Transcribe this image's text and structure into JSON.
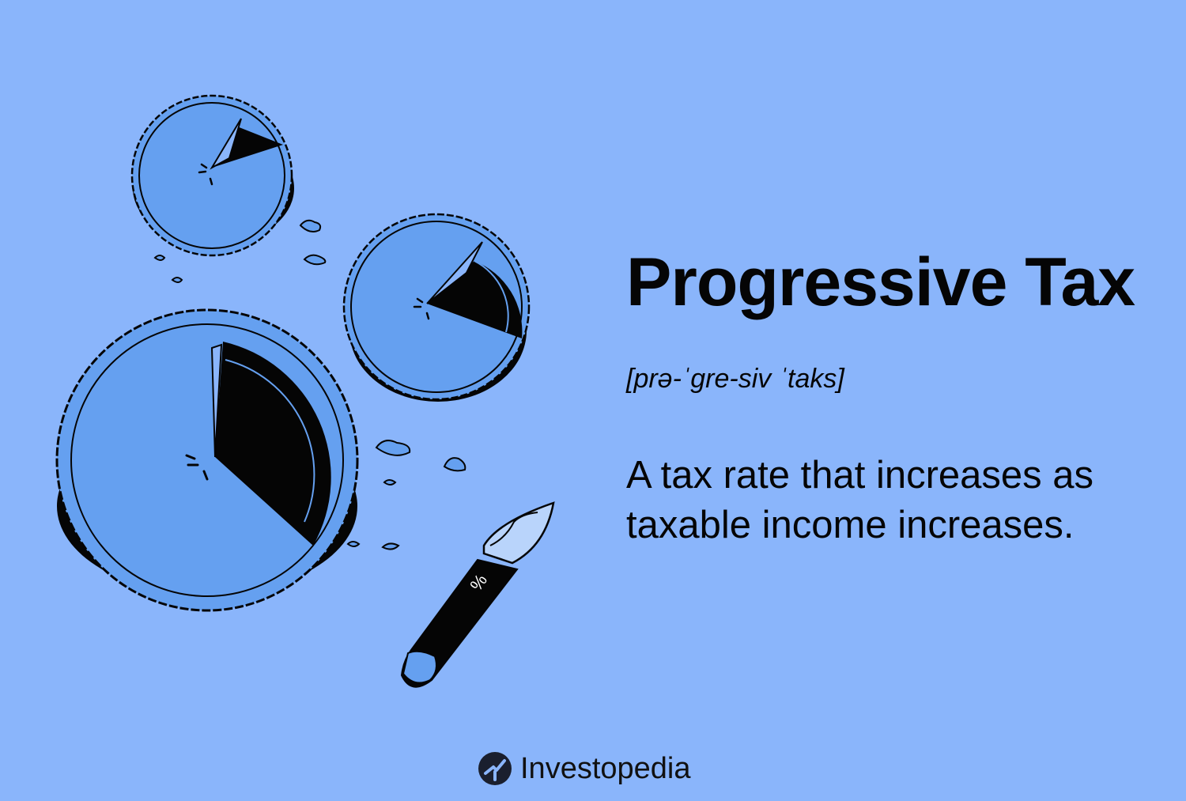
{
  "title": "Progressive Tax",
  "pronunciation": "[prə-ˈgre-siv ˈtaks]",
  "definition": "A tax rate that increases as taxable income increases.",
  "brand": {
    "name": "Investopedia",
    "logo_icon": "investopedia-logo-icon"
  },
  "knife_label": "%",
  "colors": {
    "background": "#8ab5fb",
    "pie_fill": "#65a0f0",
    "outline": "#050505",
    "blade": "#b9d4fb"
  }
}
